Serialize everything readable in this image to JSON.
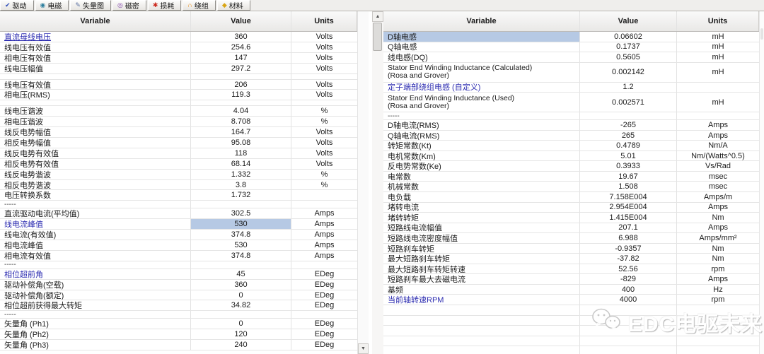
{
  "colors": {
    "selection": "#b6c9e4",
    "link": "#2b2bb0"
  },
  "toolbar": {
    "tabs": [
      {
        "name": "tab-drive",
        "icon": "drive-icon",
        "glyph": "✔",
        "icon_color": "#2f4fbb",
        "label": "驱动"
      },
      {
        "name": "tab-electromagnetic",
        "icon": "electromagnetic-icon",
        "glyph": "◉",
        "icon_color": "#2e7f9e",
        "label": "电磁"
      },
      {
        "name": "tab-vector-diagram",
        "icon": "vector-diagram-icon",
        "glyph": "✎",
        "icon_color": "#5a6fa0",
        "label": "失量图"
      },
      {
        "name": "tab-flux-density",
        "icon": "flux-density-icon",
        "glyph": "◎",
        "icon_color": "#7e3fa8",
        "label": "磁密"
      },
      {
        "name": "tab-losses",
        "icon": "losses-icon",
        "glyph": "✱",
        "icon_color": "#cc2a1e",
        "label": "损耗"
      },
      {
        "name": "tab-winding",
        "icon": "winding-icon",
        "glyph": "∩",
        "icon_color": "#e8860d",
        "label": "绕组"
      },
      {
        "name": "tab-materials",
        "icon": "materials-icon",
        "glyph": "◆",
        "icon_color": "#d9a514",
        "label": "材料"
      }
    ]
  },
  "left_table": {
    "headers": {
      "variable": "Variable",
      "value": "Value",
      "units": "Units"
    },
    "rows": [
      {
        "variable": "直流母线电压",
        "value": "360",
        "units": "Volts",
        "link": true,
        "underline": true
      },
      {
        "variable": "线电压有效值",
        "value": "254.6",
        "units": "Volts"
      },
      {
        "variable": "相电压有效值",
        "value": "147",
        "units": "Volts"
      },
      {
        "variable": "线电压幅值",
        "value": "297.2",
        "units": "Volts"
      },
      {
        "blank": true
      },
      {
        "variable": "线电压有效值",
        "value": "206",
        "units": "Volts"
      },
      {
        "variable": "相电压(RMS)",
        "value": "119.3",
        "units": "Volts"
      },
      {
        "blank": true
      },
      {
        "variable": "线电压谐波",
        "value": "4.04",
        "units": "%"
      },
      {
        "variable": "相电压谐波",
        "value": "8.708",
        "units": "%"
      },
      {
        "variable": "线反电势幅值",
        "value": "164.7",
        "units": "Volts"
      },
      {
        "variable": "相反电势幅值",
        "value": "95.08",
        "units": "Volts"
      },
      {
        "variable": "线反电势有效值",
        "value": "118",
        "units": "Volts"
      },
      {
        "variable": "相反电势有效值",
        "value": "68.14",
        "units": "Volts"
      },
      {
        "variable": "线反电势谐波",
        "value": "1.332",
        "units": "%"
      },
      {
        "variable": "相反电势谐波",
        "value": "3.8",
        "units": "%"
      },
      {
        "variable": "电压转换系数",
        "value": "1.732",
        "units": ""
      },
      {
        "dashes": true,
        "variable": "-----"
      },
      {
        "variable": "直流驱动电流(平均值)",
        "value": "302.5",
        "units": "Amps"
      },
      {
        "variable": "线电流峰值",
        "value": "530",
        "units": "Amps",
        "link": true,
        "value_selected": true
      },
      {
        "variable": "线电流(有效值)",
        "value": "374.8",
        "units": "Amps"
      },
      {
        "variable": "相电流峰值",
        "value": "530",
        "units": "Amps"
      },
      {
        "variable": "相电流有效值",
        "value": "374.8",
        "units": "Amps"
      },
      {
        "dashes": true,
        "variable": "-----"
      },
      {
        "variable": "相位超前角",
        "value": "45",
        "units": "EDeg",
        "link": true
      },
      {
        "variable": "驱动补偿角(空载)",
        "value": "360",
        "units": "EDeg"
      },
      {
        "variable": "驱动补偿角(额定)",
        "value": "0",
        "units": "EDeg"
      },
      {
        "variable": "相位超前获得最大转矩",
        "value": "34.82",
        "units": "EDeg"
      },
      {
        "dashes": true,
        "variable": "-----"
      },
      {
        "variable": "矢量角 (Ph1)",
        "value": "0",
        "units": "EDeg"
      },
      {
        "variable": "矢量角 (Ph2)",
        "value": "120",
        "units": "EDeg"
      },
      {
        "variable": "矢量角 (Ph3)",
        "value": "240",
        "units": "EDeg"
      }
    ]
  },
  "right_table": {
    "headers": {
      "variable": "Variable",
      "value": "Value",
      "units": "Units"
    },
    "rows": [
      {
        "variable": "D轴电感",
        "value": "0.06602",
        "units": "mH",
        "selected": true
      },
      {
        "variable": "Q轴电感",
        "value": "0.1737",
        "units": "mH"
      },
      {
        "variable": "线电感(DQ)",
        "value": "0.5605",
        "units": "mH"
      },
      {
        "variable": "Stator End Winding Inductance (Calculated)",
        "variable_sub": "(Rosa and Grover)",
        "value": "0.002142",
        "units": "mH",
        "two_line": true
      },
      {
        "variable": "定子端部绕组电感 (自定义)",
        "value": "1.2",
        "units": "",
        "link": true
      },
      {
        "variable": "Stator End Winding Inductance (Used)",
        "variable_sub": "(Rosa and Grover)",
        "value": "0.002571",
        "units": "mH",
        "two_line": true
      },
      {
        "dashes": true,
        "variable": "-----"
      },
      {
        "variable": "D轴电流(RMS)",
        "value": "-265",
        "units": "Amps"
      },
      {
        "variable": "Q轴电流(RMS)",
        "value": "265",
        "units": "Amps"
      },
      {
        "variable": "转矩常数(Kt)",
        "value": "0.4789",
        "units": "Nm/A"
      },
      {
        "variable": "电机常数(Km)",
        "value": "5.01",
        "units": "Nm/(Watts^0.5)"
      },
      {
        "variable": "反电势常数(Ke)",
        "value": "0.3933",
        "units": "Vs/Rad"
      },
      {
        "variable": "电常数",
        "value": "19.67",
        "units": "msec"
      },
      {
        "variable": "机械常数",
        "value": "1.508",
        "units": "msec"
      },
      {
        "variable": "电负载",
        "value": "7.158E004",
        "units": "Amps/m"
      },
      {
        "variable": "堵转电流",
        "value": "2.954E004",
        "units": "Amps"
      },
      {
        "variable": "堵转转矩",
        "value": "1.415E004",
        "units": "Nm"
      },
      {
        "variable": "短路线电流幅值",
        "value": "207.1",
        "units": "Amps"
      },
      {
        "variable": "短路线电流密度幅值",
        "value": "6.988",
        "units": "Amps/mm²"
      },
      {
        "variable": "短路刹车转矩",
        "value": "-0.9357",
        "units": "Nm"
      },
      {
        "variable": "最大短路刹车转矩",
        "value": "-37.82",
        "units": "Nm"
      },
      {
        "variable": "最大短路刹车转矩转速",
        "value": "52.56",
        "units": "rpm"
      },
      {
        "variable": "短路刹车最大去磁电流",
        "value": "-829",
        "units": "Amps"
      },
      {
        "variable": "基频",
        "value": "400",
        "units": "Hz"
      },
      {
        "variable": "当前轴转速RPM",
        "value": "4000",
        "units": "rpm",
        "link": true
      },
      {
        "empty": true
      },
      {
        "empty": true
      },
      {
        "empty": true
      },
      {
        "empty": true
      },
      {
        "empty": true
      }
    ]
  },
  "watermark": {
    "text": "EDC电驱未来",
    "logo": "wechat-bubbles-icon"
  }
}
